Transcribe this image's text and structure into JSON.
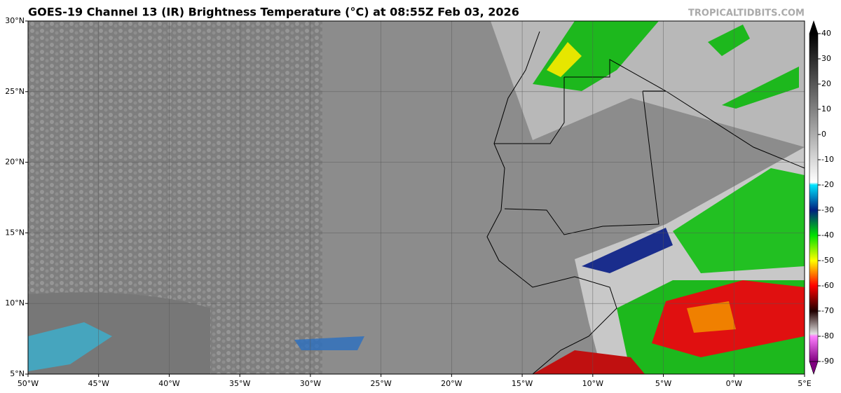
{
  "map": {
    "title": "GOES-19 Channel 13 (IR) Brightness Temperature (°C) at 08:55Z Feb 03, 2026",
    "source": "TROPICALTIDBITS.COM",
    "xlim": [
      -50,
      5
    ],
    "ylim": [
      5,
      30
    ],
    "xticks": [
      {
        "value": -50,
        "label": "50°W"
      },
      {
        "value": -45,
        "label": "45°W"
      },
      {
        "value": -40,
        "label": "40°W"
      },
      {
        "value": -35,
        "label": "35°W"
      },
      {
        "value": -30,
        "label": "30°W"
      },
      {
        "value": -25,
        "label": "25°W"
      },
      {
        "value": -20,
        "label": "20°W"
      },
      {
        "value": -15,
        "label": "15°W"
      },
      {
        "value": -10,
        "label": "10°W"
      },
      {
        "value": -5,
        "label": "5°W"
      },
      {
        "value": 0,
        "label": "0°W"
      },
      {
        "value": 5,
        "label": "5°E"
      }
    ],
    "yticks": [
      {
        "value": 5,
        "label": "5°N"
      },
      {
        "value": 10,
        "label": "10°N"
      },
      {
        "value": 15,
        "label": "15°N"
      },
      {
        "value": 20,
        "label": "20°N"
      },
      {
        "value": 25,
        "label": "25°N"
      },
      {
        "value": 30,
        "label": "30°N"
      }
    ],
    "grid": true,
    "colorbar": {
      "lim": [
        -90,
        40
      ],
      "ticks": [
        40,
        30,
        20,
        10,
        0,
        -10,
        -20,
        -30,
        -40,
        -50,
        -60,
        -70,
        -80,
        -90
      ],
      "stops": [
        {
          "value": 40,
          "color": "#000000"
        },
        {
          "value": -19,
          "color": "#ffffff"
        },
        {
          "value": -20,
          "color": "#00e5ff"
        },
        {
          "value": -30,
          "color": "#002080"
        },
        {
          "value": -40,
          "color": "#00e000"
        },
        {
          "value": -50,
          "color": "#ffff00"
        },
        {
          "value": -60,
          "color": "#ff0000"
        },
        {
          "value": -70,
          "color": "#200000"
        },
        {
          "value": -79,
          "color": "#e0e0e0"
        },
        {
          "value": -80,
          "color": "#ff80ff"
        },
        {
          "value": -90,
          "color": "#800080"
        }
      ]
    }
  }
}
